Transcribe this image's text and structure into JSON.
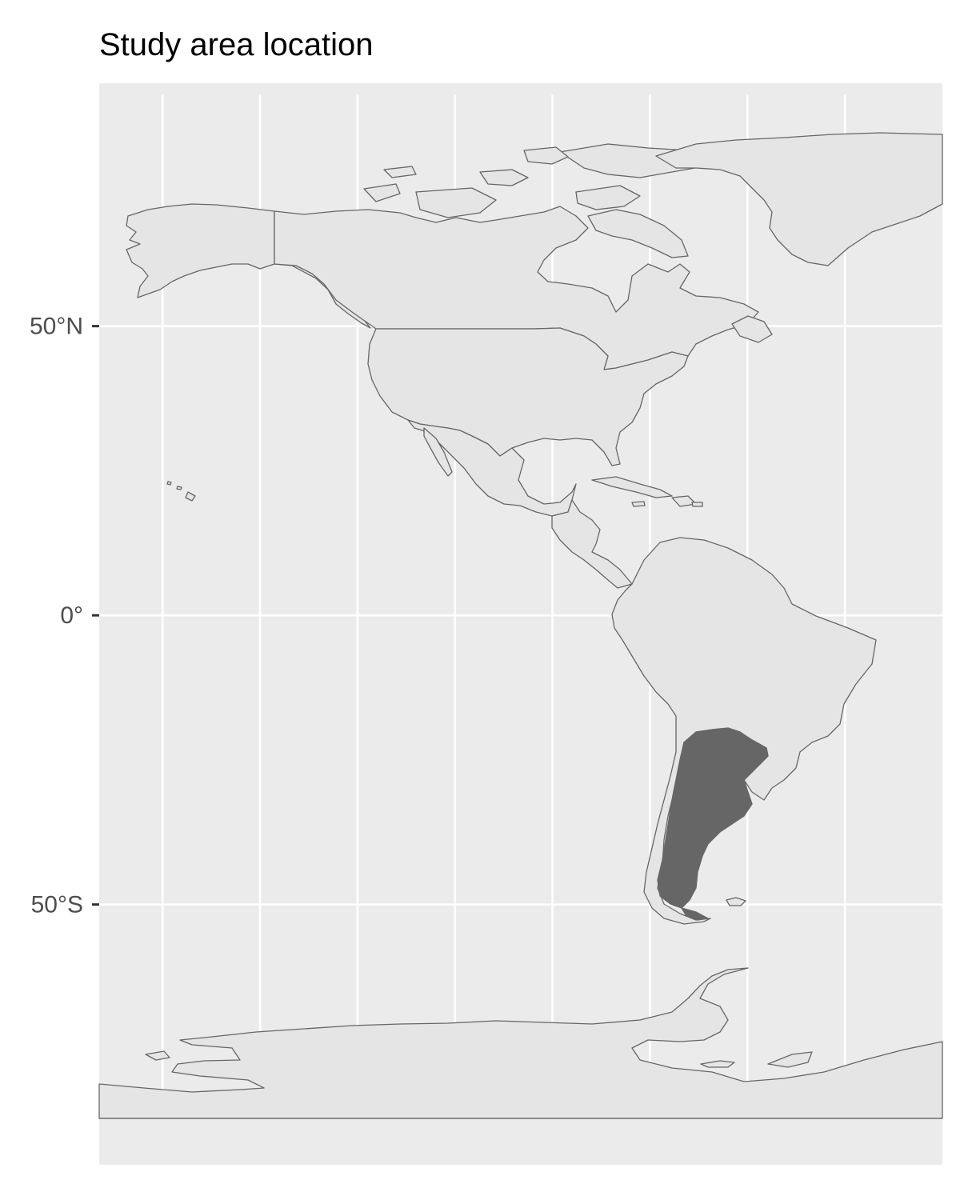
{
  "title": "Study area location",
  "y_axis": {
    "ticks": [
      {
        "lat": 50,
        "label": "50°N"
      },
      {
        "lat": 0,
        "label": "0°"
      },
      {
        "lat": -50,
        "label": "50°S"
      }
    ]
  },
  "map_extent": {
    "lon_min": -183,
    "lon_max": -10,
    "lat_min": -95,
    "lat_max": 92
  },
  "meridians": [
    -170,
    -150,
    -130,
    -110,
    -90,
    -70,
    -50,
    -30
  ],
  "highlight": {
    "region": "Argentina",
    "fill": "#666666"
  },
  "colors": {
    "panel_background": "#ebebeb",
    "land": "#e5e5e5",
    "border": "#666666",
    "grid": "#ffffff",
    "highlight": "#666666"
  }
}
